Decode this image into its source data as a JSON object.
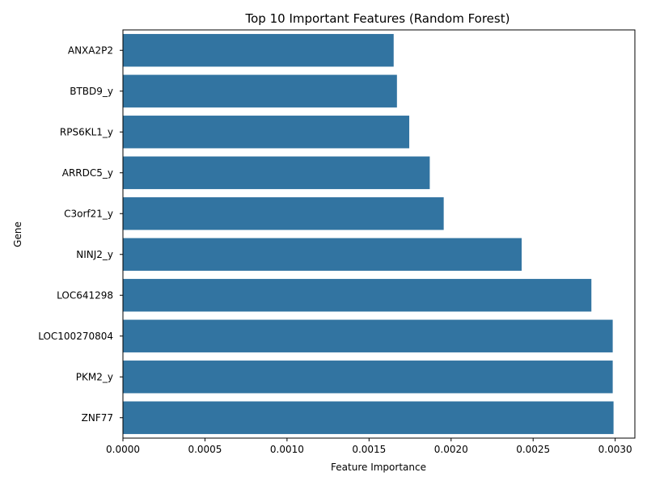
{
  "chart_data": {
    "type": "bar",
    "orientation": "horizontal",
    "title": "Top 10 Important Features (Random Forest)",
    "xlabel": "Feature Importance",
    "ylabel": "Gene",
    "xlim": [
      0,
      0.00312
    ],
    "xticks": [
      "0.0000",
      "0.0005",
      "0.0010",
      "0.0015",
      "0.0020",
      "0.0025",
      "0.0030"
    ],
    "categories": [
      "ANXA2P2",
      "BTBD9_y",
      "RPS6KL1_y",
      "ARRDC5_y",
      "C3orf21_y",
      "NINJ2_y",
      "LOC641298",
      "LOC100270804",
      "PKM2_y",
      "ZNF77"
    ],
    "values": [
      0.00165,
      0.00167,
      0.001745,
      0.00187,
      0.001955,
      0.00243,
      0.002855,
      0.002985,
      0.002985,
      0.00299
    ],
    "grid": false,
    "legend": "none",
    "bar_color": "#3274a1"
  }
}
